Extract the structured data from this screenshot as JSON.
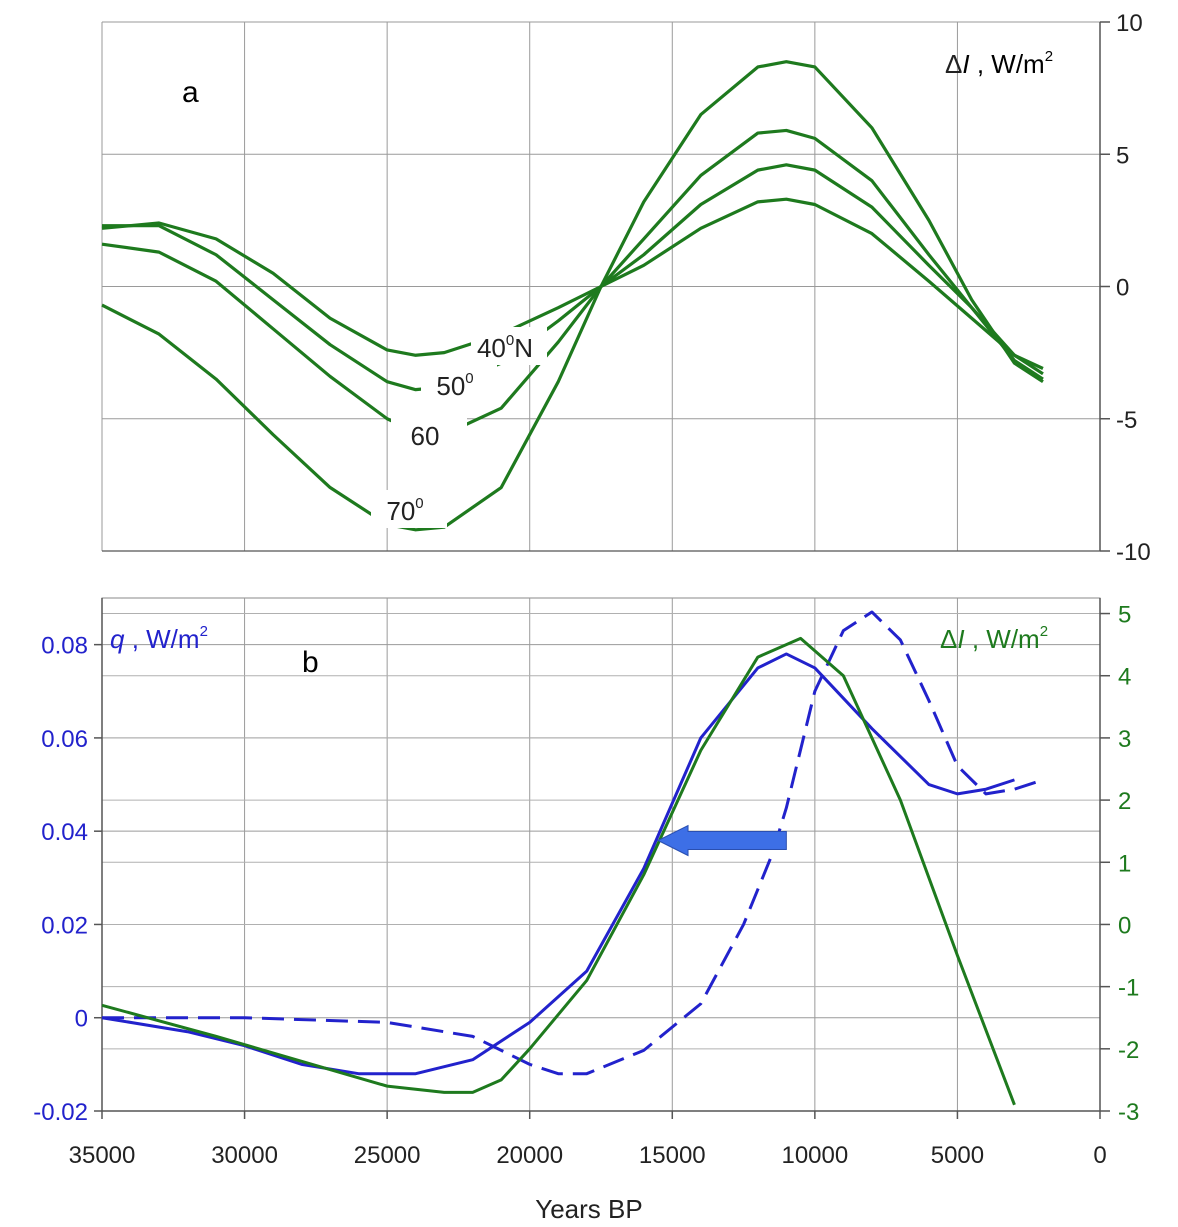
{
  "chart_data": [
    {
      "panel": "a",
      "type": "line",
      "panel_label": "a",
      "xlabel": "",
      "ylabel": "ΔI , W/m²",
      "ylabel_parts": {
        "delta": "Δ",
        "var": "I",
        "unit": " , W/m",
        "sup": "2"
      },
      "xlim": [
        35000,
        0
      ],
      "ylim": [
        -10,
        10
      ],
      "y_ticks": [
        10,
        5,
        0,
        -5,
        -10
      ],
      "y_axis_side": "right",
      "grid": true,
      "color": "#1e7a1e",
      "series": [
        {
          "name": "40⁰N",
          "label_parts": {
            "base": "40",
            "sup": "0",
            "suffix": "N"
          },
          "x": [
            35000,
            33000,
            31000,
            29000,
            27000,
            25000,
            24000,
            23000,
            21000,
            19000,
            17500,
            16000,
            14000,
            12000,
            11000,
            10000,
            8000,
            6000,
            4500,
            3000,
            2000
          ],
          "y": [
            2.2,
            2.4,
            1.8,
            0.5,
            -1.2,
            -2.4,
            -2.6,
            -2.5,
            -1.8,
            -0.8,
            0.0,
            0.8,
            2.2,
            3.2,
            3.3,
            3.1,
            2.0,
            0.2,
            -1.2,
            -2.6,
            -3.1
          ]
        },
        {
          "name": "50⁰",
          "label_parts": {
            "base": "50",
            "sup": "0",
            "suffix": ""
          },
          "x": [
            35000,
            33000,
            31000,
            29000,
            27000,
            25000,
            24000,
            23000,
            21000,
            19000,
            17500,
            16000,
            14000,
            12000,
            11000,
            10000,
            8000,
            6000,
            4500,
            3000,
            2000
          ],
          "y": [
            2.3,
            2.3,
            1.2,
            -0.5,
            -2.2,
            -3.6,
            -3.9,
            -3.8,
            -2.9,
            -1.3,
            0.0,
            1.2,
            3.1,
            4.4,
            4.6,
            4.4,
            3.0,
            0.8,
            -0.8,
            -2.6,
            -3.3
          ]
        },
        {
          "name": "60",
          "label_parts": {
            "base": "60",
            "sup": "",
            "suffix": ""
          },
          "x": [
            35000,
            33000,
            31000,
            29000,
            27000,
            25000,
            24000,
            23000,
            21000,
            19000,
            17500,
            16000,
            14000,
            12000,
            11000,
            10000,
            8000,
            6000,
            4500,
            3000,
            2000
          ],
          "y": [
            1.6,
            1.3,
            0.2,
            -1.6,
            -3.4,
            -5.0,
            -5.5,
            -5.6,
            -4.6,
            -2.1,
            0.0,
            1.8,
            4.2,
            5.8,
            5.9,
            5.6,
            4.0,
            1.2,
            -0.8,
            -2.8,
            -3.5
          ]
        },
        {
          "name": "70⁰",
          "label_parts": {
            "base": "70",
            "sup": "0",
            "suffix": ""
          },
          "x": [
            35000,
            33000,
            31000,
            29000,
            27000,
            25000,
            24000,
            23000,
            21000,
            19000,
            17500,
            16000,
            14000,
            12000,
            11000,
            10000,
            8000,
            6000,
            4500,
            3000,
            2000
          ],
          "y": [
            -0.7,
            -1.8,
            -3.5,
            -5.6,
            -7.6,
            -9.0,
            -9.2,
            -9.1,
            -7.6,
            -3.6,
            0.0,
            3.2,
            6.5,
            8.3,
            8.5,
            8.3,
            6.0,
            2.5,
            -0.5,
            -2.9,
            -3.6
          ]
        }
      ]
    },
    {
      "panel": "b",
      "type": "line",
      "panel_label": "b",
      "xlabel": "Years BP",
      "xlim": [
        35000,
        0
      ],
      "x_ticks": [
        35000,
        30000,
        25000,
        20000,
        15000,
        10000,
        5000,
        0
      ],
      "grid": true,
      "left_axis": {
        "label": "q , W/m²",
        "label_parts": {
          "var": "q",
          "unit": " , W/m",
          "sup": "2"
        },
        "ylim": [
          -0.02,
          0.09
        ],
        "ticks": [
          -0.02,
          0,
          0.02,
          0.04,
          0.06,
          0.08
        ],
        "color": "#2222cc"
      },
      "right_axis": {
        "label": "ΔI , W/m²",
        "label_parts": {
          "delta": "Δ",
          "var": "I",
          "unit": " , W/m",
          "sup": "2"
        },
        "ylim": [
          -3,
          5.25
        ],
        "ticks": [
          -3,
          -2,
          -1,
          0,
          1,
          2,
          3,
          4,
          5
        ],
        "color": "#1e7a1e"
      },
      "series": [
        {
          "axis": "left",
          "style": "solid",
          "color": "#2222cc",
          "x": [
            35000,
            32000,
            30000,
            28000,
            26000,
            24000,
            22000,
            20000,
            18000,
            16000,
            14000,
            12000,
            11000,
            10000,
            8000,
            6000,
            5000,
            4000,
            3000
          ],
          "y": [
            0.0,
            -0.003,
            -0.006,
            -0.01,
            -0.012,
            -0.012,
            -0.009,
            -0.001,
            0.01,
            0.032,
            0.06,
            0.075,
            0.078,
            0.075,
            0.062,
            0.05,
            0.048,
            0.049,
            0.051
          ]
        },
        {
          "axis": "left",
          "style": "dashed",
          "color": "#2222cc",
          "x": [
            35000,
            30000,
            25000,
            22000,
            20000,
            19000,
            18000,
            16000,
            14000,
            12500,
            11500,
            11000,
            10000,
            9000,
            8000,
            7000,
            6000,
            5000,
            4000,
            3000,
            2000
          ],
          "y": [
            0.0,
            0.0,
            -0.001,
            -0.004,
            -0.01,
            -0.012,
            -0.012,
            -0.007,
            0.003,
            0.02,
            0.035,
            0.045,
            0.07,
            0.083,
            0.087,
            0.081,
            0.068,
            0.054,
            0.048,
            0.049,
            0.051
          ]
        },
        {
          "axis": "right",
          "style": "solid",
          "color": "#1e7a1e",
          "x": [
            35000,
            31000,
            28000,
            25000,
            23000,
            22000,
            21000,
            20000,
            18000,
            16000,
            14000,
            12000,
            10500,
            9000,
            7000,
            5000,
            3000
          ],
          "y": [
            -1.3,
            -1.8,
            -2.2,
            -2.6,
            -2.7,
            -2.7,
            -2.5,
            -2.0,
            -0.9,
            0.8,
            2.8,
            4.3,
            4.6,
            4.0,
            2.0,
            -0.5,
            -2.9
          ]
        }
      ],
      "arrow": {
        "from_x": 11000,
        "to_x": 15500,
        "y_left": 0.038,
        "color": "#3d6fe6"
      }
    }
  ]
}
